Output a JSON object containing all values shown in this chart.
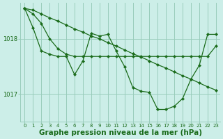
{
  "background_color": "#cceee8",
  "grid_color": "#99ccbb",
  "line_color": "#1a6b1a",
  "xlabel": "Graphe pression niveau de la mer (hPa)",
  "xlabel_fontsize": 7.5,
  "yticks": [
    1017,
    1018
  ],
  "xlim": [
    -0.5,
    23.5
  ],
  "ylim": [
    1016.5,
    1018.65
  ],
  "series": [
    {
      "x": [
        0,
        1,
        2,
        3,
        4,
        5,
        6,
        7,
        8,
        9,
        10,
        11,
        12,
        13,
        14,
        15,
        16,
        17,
        18,
        19,
        20,
        21,
        22,
        23
      ],
      "y": [
        1018.55,
        1018.52,
        1018.45,
        1018.38,
        1018.32,
        1018.25,
        1018.18,
        1018.12,
        1018.05,
        1018.0,
        1017.93,
        1017.87,
        1017.8,
        1017.73,
        1017.67,
        1017.6,
        1017.53,
        1017.47,
        1017.4,
        1017.33,
        1017.27,
        1017.2,
        1017.13,
        1017.07
      ]
    },
    {
      "x": [
        0,
        1,
        2,
        3,
        4,
        5,
        6,
        7,
        8,
        9,
        10,
        11,
        12,
        13,
        14,
        15,
        16,
        17,
        18,
        19,
        20,
        21,
        22,
        23
      ],
      "y": [
        1018.55,
        1018.45,
        1018.28,
        1018.0,
        1017.82,
        1017.72,
        1017.68,
        1017.68,
        1017.68,
        1017.68,
        1017.68,
        1017.68,
        1017.68,
        1017.68,
        1017.68,
        1017.68,
        1017.68,
        1017.68,
        1017.68,
        1017.68,
        1017.68,
        1017.68,
        1017.68,
        1017.87
      ]
    },
    {
      "x": [
        0,
        1,
        2,
        3,
        4,
        5,
        6,
        7,
        8,
        9,
        10,
        11,
        12,
        13,
        14,
        15,
        16,
        17,
        18,
        19,
        20,
        21,
        22,
        23
      ],
      "y": [
        1018.55,
        1018.2,
        1017.78,
        1017.72,
        1017.68,
        1017.68,
        1017.35,
        1017.6,
        1018.1,
        1018.05,
        1018.08,
        1017.78,
        1017.5,
        1017.12,
        1017.05,
        1017.03,
        1016.72,
        1016.72,
        1016.78,
        1016.92,
        1017.27,
        1017.52,
        1018.08,
        1018.08
      ]
    }
  ]
}
